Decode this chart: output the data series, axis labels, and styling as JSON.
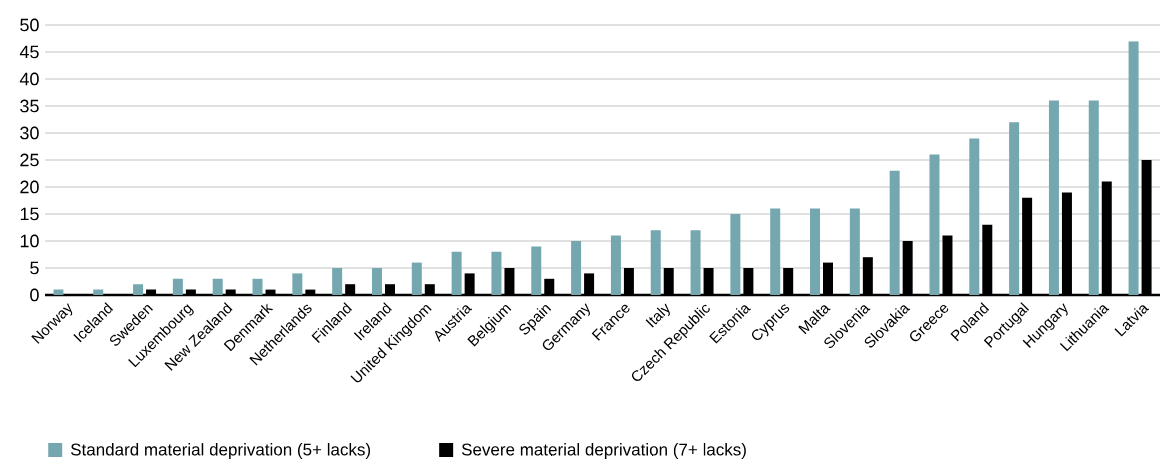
{
  "chart_data": {
    "type": "bar",
    "categories": [
      "Norway",
      "Iceland",
      "Sweden",
      "Luxembourg",
      "New Zealand",
      "Denmark",
      "Netherlands",
      "Finland",
      "Ireland",
      "United Kingdom",
      "Austria",
      "Belgium",
      "Spain",
      "Germany",
      "France",
      "Italy",
      "Czech Republic",
      "Estonia",
      "Cyprus",
      "Malta",
      "Slovenia",
      "Slovakia",
      "Greece",
      "Poland",
      "Portugal",
      "Hungary",
      "Lithuania",
      "Latvia"
    ],
    "series": [
      {
        "name": "Standard material deprivation (5+ lacks)",
        "color": "#75a7b0",
        "values": [
          1,
          1,
          2,
          3,
          3,
          3,
          4,
          5,
          5,
          6,
          8,
          8,
          9,
          10,
          11,
          12,
          12,
          15,
          16,
          16,
          16,
          23,
          26,
          29,
          32,
          36,
          36,
          47
        ]
      },
      {
        "name": "Severe material deprivation (7+ lacks)",
        "color": "#000000",
        "values": [
          0,
          0,
          1,
          1,
          1,
          1,
          1,
          2,
          2,
          2,
          4,
          5,
          3,
          4,
          5,
          5,
          5,
          5,
          5,
          6,
          7,
          10,
          11,
          13,
          18,
          19,
          21,
          25
        ]
      }
    ],
    "ylim": [
      0,
      50
    ],
    "yticks": [
      0,
      5,
      10,
      15,
      20,
      25,
      30,
      35,
      40,
      45,
      50
    ],
    "grid": "y",
    "legend": "bottom"
  }
}
